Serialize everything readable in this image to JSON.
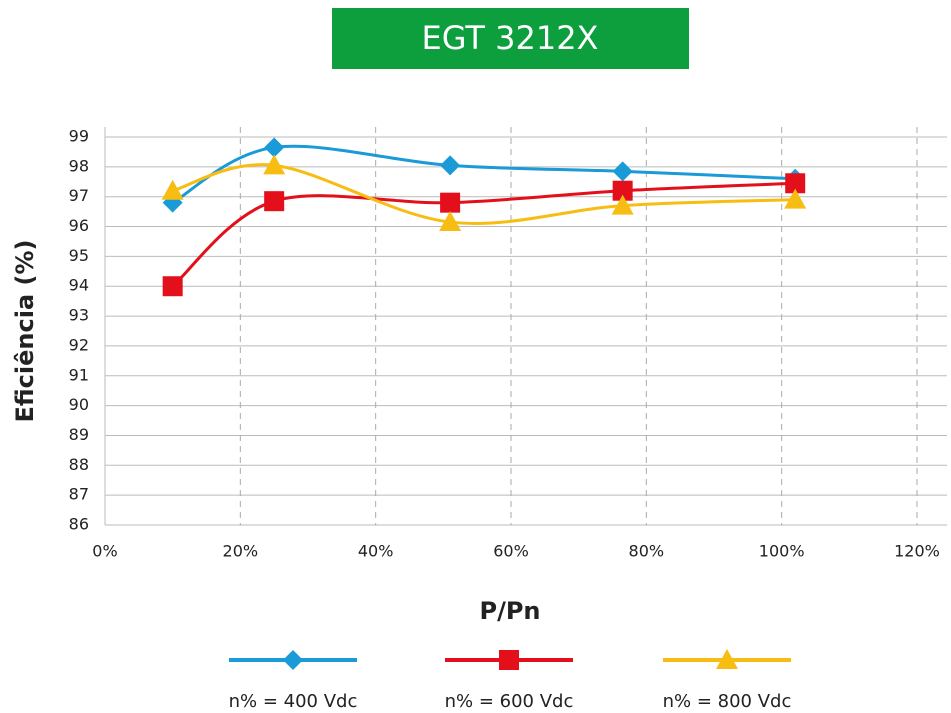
{
  "chart_data": {
    "type": "line",
    "title": "EGT 3212X",
    "xlabel": "P/Pn",
    "ylabel": "Eficiência (%)",
    "x": [
      10,
      25,
      51,
      76.5,
      102
    ],
    "series": [
      {
        "name": "n% = 400 Vdc",
        "color": "#1a9ad6",
        "marker": "diamond",
        "values": [
          96.8,
          98.65,
          98.05,
          97.85,
          97.6
        ]
      },
      {
        "name": "n% = 600 Vdc",
        "color": "#e3101c",
        "marker": "square",
        "values": [
          94.0,
          96.85,
          96.8,
          97.2,
          97.45
        ]
      },
      {
        "name": "n% = 800 Vdc",
        "color": "#f7bd12",
        "marker": "triangle",
        "values": [
          97.2,
          98.05,
          96.15,
          96.7,
          96.9
        ]
      }
    ],
    "xlim": [
      0,
      120
    ],
    "xticks": [
      {
        "value": 0,
        "label": "0%"
      },
      {
        "value": 20,
        "label": "20%"
      },
      {
        "value": 40,
        "label": "40%"
      },
      {
        "value": 60,
        "label": "60%"
      },
      {
        "value": 80,
        "label": "80%"
      },
      {
        "value": 100,
        "label": "100%"
      },
      {
        "value": 120,
        "label": "120%"
      }
    ],
    "ylim": [
      86,
      99
    ],
    "yticks": [
      86,
      87,
      88,
      89,
      90,
      91,
      92,
      93,
      94,
      95,
      96,
      97,
      98,
      99
    ],
    "grid": true,
    "title_color": "#0d9f3e",
    "legend": "bottom"
  }
}
